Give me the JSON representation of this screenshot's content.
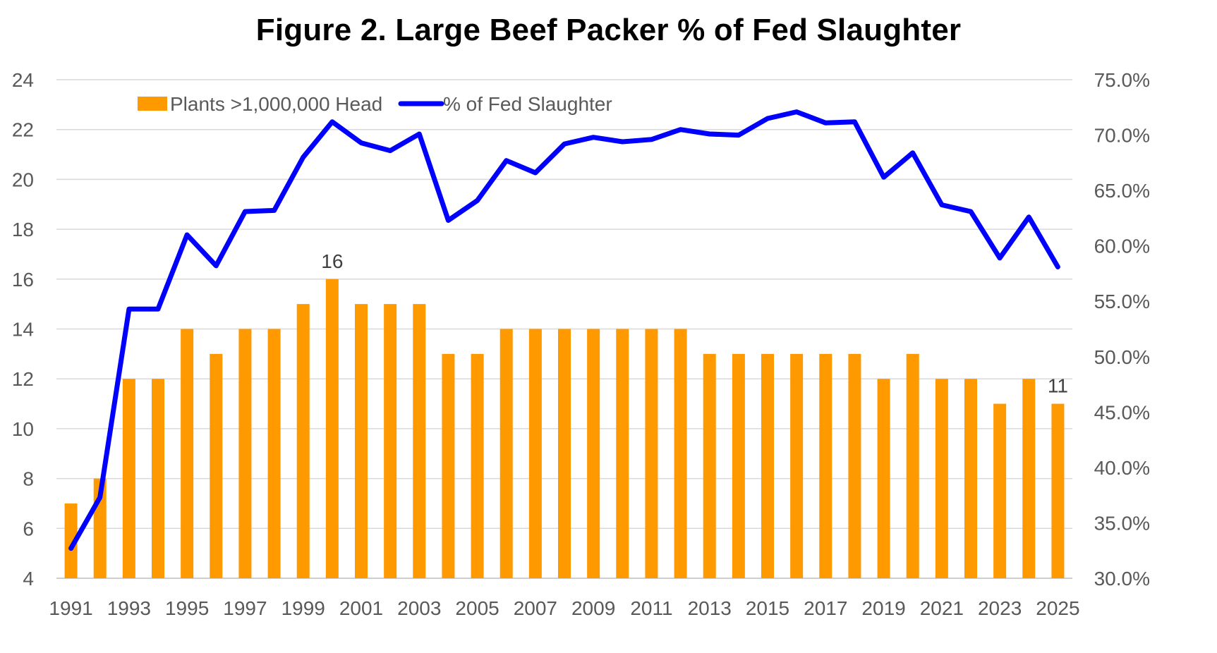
{
  "chart_data": {
    "type": "bar",
    "title": "Figure 2. Large Beef Packer % of Fed Slaughter",
    "x": [
      1991,
      1992,
      1993,
      1994,
      1995,
      1996,
      1997,
      1998,
      1999,
      2000,
      2001,
      2002,
      2003,
      2004,
      2005,
      2006,
      2007,
      2008,
      2009,
      2010,
      2011,
      2012,
      2013,
      2014,
      2015,
      2016,
      2017,
      2018,
      2019,
      2020,
      2021,
      2022,
      2023,
      2024,
      2025
    ],
    "x_tick_labels": [
      "1991",
      "1993",
      "1995",
      "1997",
      "1999",
      "2001",
      "2003",
      "2005",
      "2007",
      "2009",
      "2011",
      "2013",
      "2015",
      "2017",
      "2019",
      "2021",
      "2023",
      "2025"
    ],
    "series": [
      {
        "name": "Plants >1,000,000 Head",
        "type": "bar",
        "axis": "left",
        "color": "#FF9900",
        "values": [
          7,
          8,
          12,
          12,
          14,
          13,
          14,
          14,
          15,
          16,
          15,
          15,
          15,
          13,
          13,
          14,
          14,
          14,
          14,
          14,
          14,
          14,
          13,
          13,
          13,
          13,
          13,
          13,
          12,
          13,
          12,
          12,
          11,
          12,
          11
        ]
      },
      {
        "name": "% of Fed Slaughter",
        "type": "line",
        "axis": "right",
        "color": "#0000FF",
        "values": [
          32.7,
          37.3,
          54.3,
          54.3,
          61.0,
          58.2,
          63.1,
          63.2,
          68.0,
          71.2,
          69.3,
          68.6,
          70.1,
          62.3,
          64.1,
          67.7,
          66.6,
          69.2,
          69.8,
          69.4,
          69.6,
          70.5,
          70.1,
          70.0,
          71.5,
          72.1,
          71.1,
          71.2,
          66.2,
          68.4,
          63.7,
          63.1,
          58.9,
          62.6,
          58.1
        ]
      }
    ],
    "y_left": {
      "min": 4,
      "max": 24,
      "ticks": [
        4,
        6,
        8,
        10,
        12,
        14,
        16,
        18,
        20,
        22,
        24
      ]
    },
    "y_right": {
      "min": 30,
      "max": 75,
      "ticks": [
        "30.0%",
        "35.0%",
        "40.0%",
        "45.0%",
        "50.0%",
        "55.0%",
        "60.0%",
        "65.0%",
        "70.0%",
        "75.0%"
      ]
    },
    "data_labels": [
      {
        "year": 2000,
        "series": "Plants >1,000,000 Head",
        "text": "16"
      },
      {
        "year": 2025,
        "series": "Plants >1,000,000 Head",
        "text": "11"
      }
    ],
    "grid": true,
    "legend": "top-left"
  }
}
